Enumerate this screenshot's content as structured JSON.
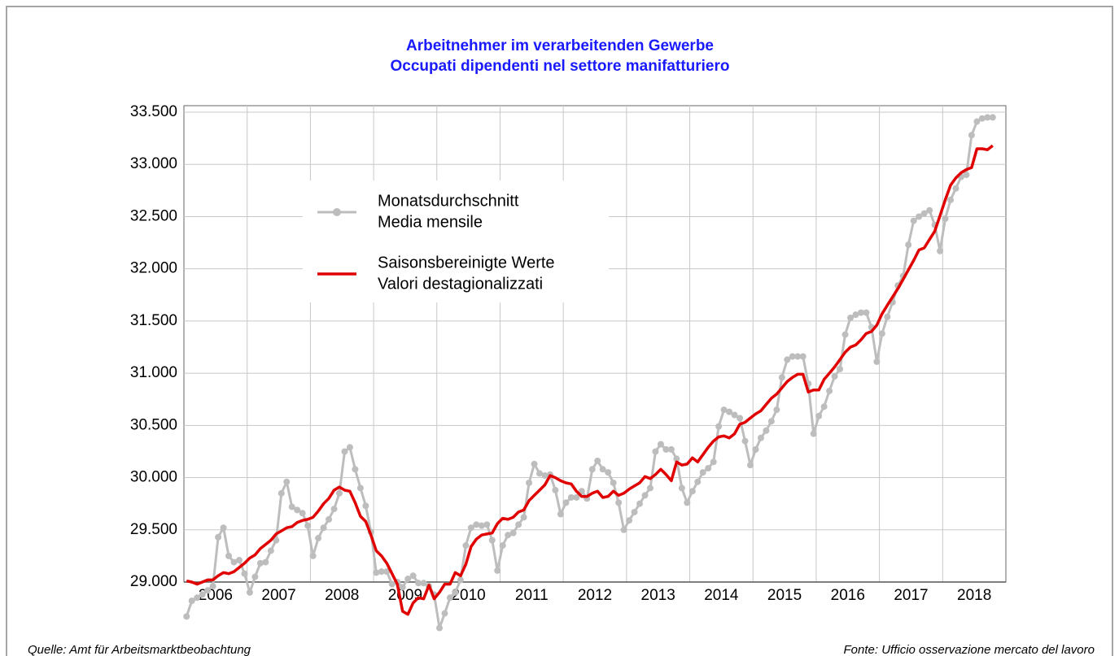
{
  "chart_data": {
    "type": "line",
    "title": [
      "Arbeitnehmer im verarbeitenden Gewerbe",
      "Occupati dipendenti nel settore manifatturiero"
    ],
    "years": [
      "2006",
      "2007",
      "2008",
      "2009",
      "2010",
      "2011",
      "2012",
      "2013",
      "2014",
      "2015",
      "2016",
      "2017",
      "2018"
    ],
    "series": [
      {
        "name": [
          "Monatsdurchschnitt",
          "Media mensile"
        ],
        "color": "#bdbdbd",
        "markers": true,
        "values": [
          28670,
          28820,
          28850,
          28880,
          28920,
          28960,
          29430,
          29520,
          29250,
          29190,
          29210,
          29080,
          28900,
          29050,
          29180,
          29190,
          29300,
          29400,
          29850,
          29960,
          29720,
          29690,
          29660,
          29540,
          29250,
          29420,
          29520,
          29600,
          29700,
          29850,
          30250,
          30290,
          30080,
          29900,
          29730,
          29480,
          29090,
          29100,
          29100,
          28980,
          29000,
          28950,
          29030,
          29060,
          28990,
          28990,
          28960,
          28880,
          28560,
          28700,
          28850,
          28900,
          29020,
          29350,
          29520,
          29550,
          29540,
          29550,
          29400,
          29110,
          29350,
          29450,
          29470,
          29550,
          29620,
          29950,
          30130,
          30040,
          30020,
          30030,
          29880,
          29650,
          29760,
          29810,
          29810,
          29870,
          29800,
          30080,
          30160,
          30080,
          30050,
          29950,
          29760,
          29500,
          29590,
          29670,
          29750,
          29830,
          29900,
          30250,
          30320,
          30270,
          30270,
          30180,
          29900,
          29760,
          29870,
          29960,
          30050,
          30090,
          30150,
          30490,
          30650,
          30630,
          30600,
          30570,
          30350,
          30120,
          30270,
          30380,
          30450,
          30540,
          30650,
          30960,
          31130,
          31160,
          31160,
          31160,
          30900,
          30420,
          30590,
          30680,
          30830,
          30970,
          31040,
          31370,
          31530,
          31560,
          31580,
          31580,
          31440,
          31110,
          31380,
          31540,
          31680,
          31840,
          31930,
          32230,
          32460,
          32500,
          32530,
          32560,
          32420,
          32170,
          32480,
          32660,
          32770,
          32880,
          32900,
          33280,
          33410,
          33440,
          33450,
          33450
        ]
      },
      {
        "name": [
          "Saisonsbereinigte Werte",
          "Valori destagionalizzati"
        ],
        "color": "#e00000",
        "markers": false,
        "values": [
          29010,
          29000,
          28980,
          29000,
          29020,
          29020,
          29060,
          29090,
          29080,
          29100,
          29140,
          29180,
          29230,
          29260,
          29320,
          29360,
          29400,
          29460,
          29490,
          29520,
          29530,
          29570,
          29590,
          29600,
          29620,
          29680,
          29750,
          29800,
          29880,
          29910,
          29880,
          29870,
          29760,
          29630,
          29580,
          29450,
          29300,
          29250,
          29180,
          29080,
          28980,
          28720,
          28690,
          28800,
          28850,
          28840,
          28970,
          28840,
          28900,
          28980,
          28980,
          29090,
          29060,
          29170,
          29340,
          29410,
          29450,
          29460,
          29470,
          29560,
          29610,
          29600,
          29620,
          29670,
          29690,
          29780,
          29830,
          29880,
          29930,
          30020,
          30000,
          29970,
          29950,
          29940,
          29870,
          29820,
          29820,
          29850,
          29870,
          29810,
          29820,
          29870,
          29830,
          29850,
          29890,
          29920,
          29950,
          30010,
          29990,
          30030,
          30080,
          30030,
          29970,
          30150,
          30120,
          30130,
          30190,
          30150,
          30220,
          30290,
          30350,
          30390,
          30400,
          30380,
          30420,
          30510,
          30530,
          30570,
          30610,
          30640,
          30700,
          30760,
          30800,
          30860,
          30920,
          30960,
          30990,
          30990,
          30820,
          30840,
          30840,
          30940,
          31000,
          31060,
          31130,
          31200,
          31250,
          31270,
          31320,
          31380,
          31400,
          31460,
          31570,
          31650,
          31730,
          31810,
          31900,
          31990,
          32080,
          32180,
          32200,
          32280,
          32360,
          32510,
          32660,
          32800,
          32870,
          32920,
          32950,
          32970,
          33150,
          33150,
          33140,
          33180
        ]
      }
    ],
    "ylim": [
      29000,
      33500
    ],
    "yticks": [
      {
        "value": 29000,
        "label": "29.000"
      },
      {
        "value": 29500,
        "label": "29.500"
      },
      {
        "value": 30000,
        "label": "30.000"
      },
      {
        "value": 30500,
        "label": "30.500"
      },
      {
        "value": 31000,
        "label": "31.000"
      },
      {
        "value": 31500,
        "label": "31.500"
      },
      {
        "value": 32000,
        "label": "32.000"
      },
      {
        "value": 32500,
        "label": "32.500"
      },
      {
        "value": 33000,
        "label": "33.000"
      },
      {
        "value": 33500,
        "label": "33.500"
      }
    ],
    "grid": true,
    "legend": "upper left",
    "source": [
      "Quelle: Amt für Arbeitsmarktbeobachtung",
      "Fonte: Ufficio osservazione mercato del lavoro"
    ]
  }
}
